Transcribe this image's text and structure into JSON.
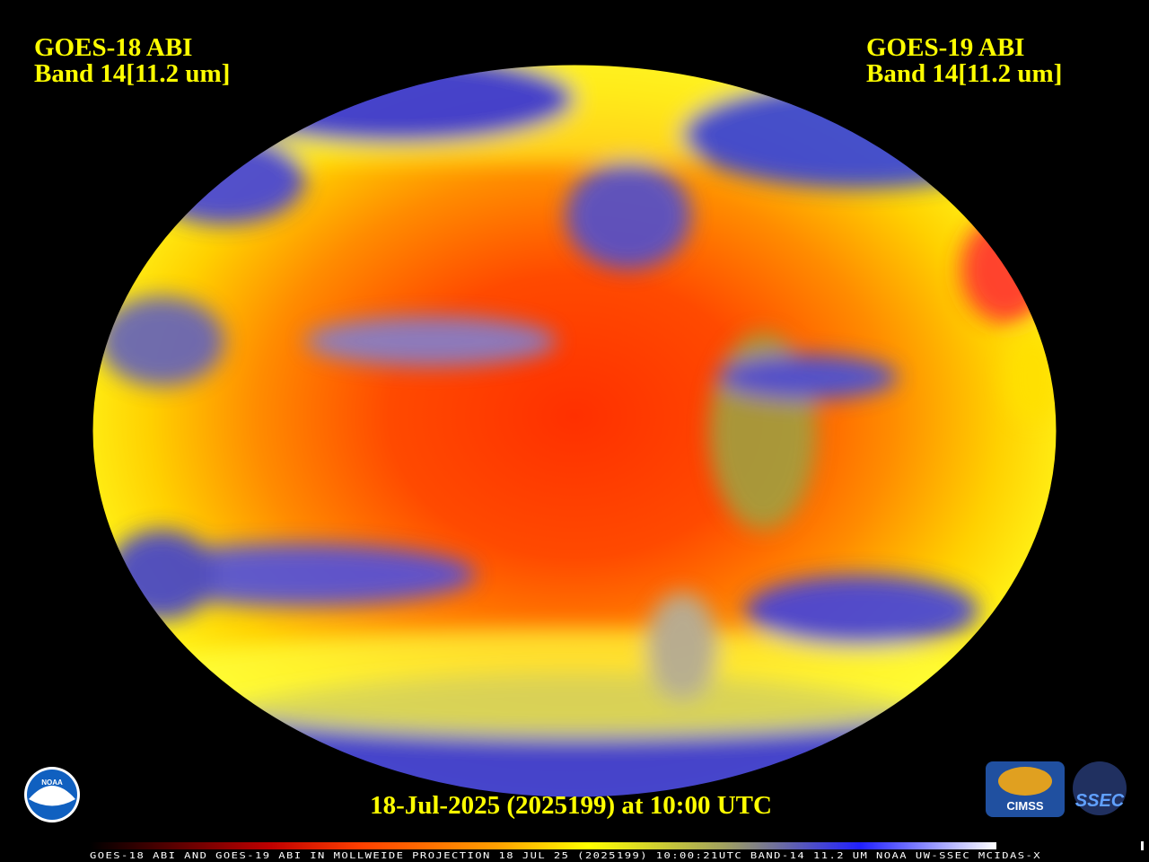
{
  "header": {
    "left": {
      "line1": "GOES-18 ABI",
      "line2": "Band 14[11.2 um]"
    },
    "right": {
      "line1": "GOES-19 ABI",
      "line2": "Band 14[11.2 um]"
    }
  },
  "timestamp": "18-Jul-2025 (2025199) at 10:00 UTC",
  "footer": "GOES-18 ABI AND GOES-19 ABI IN MOLLWEIDE PROJECTION 18 JUL 25 (2025199) 10:00:21UTC BAND-14 11.2 UM NOAA UW-SSEC MCIDAS-X",
  "logos": [
    "NOAA",
    "CIMSS",
    "SSEC"
  ]
}
